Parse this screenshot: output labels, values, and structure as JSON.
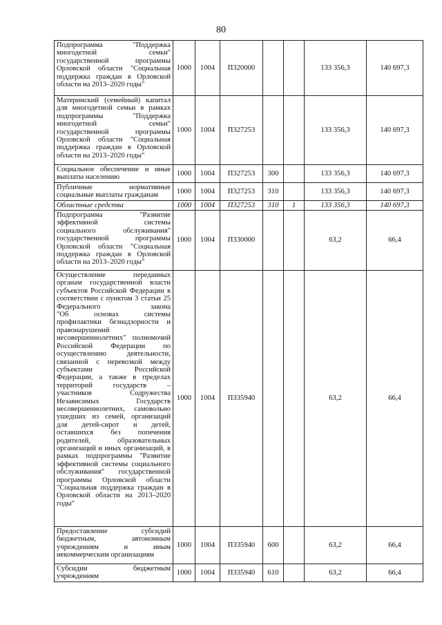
{
  "page_number": "80",
  "rows": [
    {
      "desc": [
        "Подпрограмма \"Поддержка",
        "многодетной семьи\"",
        "государственной программы",
        "Орловской области \"Социальная",
        "поддержка граждан в Орловской",
        "области на 2013–2020 годы\""
      ],
      "rz": "1000",
      "pr": "1004",
      "csr": "П320000",
      "vr": "",
      "src": "",
      "sum1": "133 356,3",
      "sum2": "140 697,3",
      "italic": false,
      "h": 80
    },
    {
      "desc": [
        "Материнский (семейный) капитал",
        "для многодетной семьи в рамках",
        "подпрограммы \"Поддержка",
        "многодетной семьи\"",
        "государственной программы",
        "Орловской области \"Социальная",
        "поддержка граждан в Орловской",
        "области на 2013–2020 годы\""
      ],
      "rz": "1000",
      "pr": "1004",
      "csr": "П327253",
      "vr": "",
      "src": "",
      "sum1": "133 356,3",
      "sum2": "140 697,3",
      "italic": false,
      "h": 100
    },
    {
      "desc": [
        "Социальное обеспечение и иные",
        "выплаты населению"
      ],
      "rz": "1000",
      "pr": "1004",
      "csr": "П327253",
      "vr": "300",
      "src": "",
      "sum1": "133 356,3",
      "sum2": "140 697,3",
      "italic": false,
      "h": 24
    },
    {
      "desc": [
        "Публичные нормативные",
        "социальные выплаты гражданам"
      ],
      "rz": "1000",
      "pr": "1004",
      "csr": "П327253",
      "vr": "310",
      "src": "",
      "sum1": "133 356,3",
      "sum2": "140 697,3",
      "italic": false,
      "h": 24
    },
    {
      "desc": [
        "Областные средства"
      ],
      "rz": "1000",
      "pr": "1004",
      "csr": "П327253",
      "vr": "310",
      "src": "1",
      "sum1": "133 356,3",
      "sum2": "140 697,3",
      "italic": true,
      "h": 14
    },
    {
      "desc": [
        "Подпрограмма \"Развитие",
        "эффективной системы",
        "социального обслуживания\"",
        "государственной программы",
        "Орловской области \"Социальная",
        "поддержка граждан в Орловской",
        "области на 2013–2020 годы\""
      ],
      "rz": "1000",
      "pr": "1004",
      "csr": "П330000",
      "vr": "",
      "src": "",
      "sum1": "63,2",
      "sum2": "66,4",
      "italic": false,
      "h": 87
    },
    {
      "desc": [
        "Осуществление переданных",
        "органам государственной власти",
        "субъектов Российской Федерации в",
        "соответствии с пунктом 3 статьи 25",
        "Федерального закона",
        "\"Об основах системы",
        "профилактики безнадзорности и",
        "правонарушений",
        "несовершеннолетних\" полномочий",
        "Российской Федерации по",
        "осуществлению деятельности,",
        "связанной с перевозкой между",
        "субъектами Российской",
        "Федерации, а также в пределах",
        "территорий государств –",
        "участников Содружества",
        "Независимых Государств",
        "несовершеннолетних, самовольно",
        "ушедших из семей, организаций",
        "для детей-сирот и детей,",
        "оставшихся без попечения",
        "родителей, образовательных",
        "организаций и иных организаций, в",
        "рамках подпрограммы \"Развитие",
        "эффективной системы социального",
        "обслуживания\" государственной",
        "программы Орловской области",
        "\"Социальная поддержка граждан в",
        "Орловской области на 2013–2020",
        "годы\""
      ],
      "rz": "1000",
      "pr": "1004",
      "csr": "П335940",
      "vr": "",
      "src": "",
      "sum1": "63,2",
      "sum2": "66,4",
      "italic": false,
      "h": 371
    },
    {
      "desc": [
        "Предоставление субсидий",
        "бюджетным, автономным",
        "учреждениям и иным",
        "некоммерческим организациям"
      ],
      "rz": "1000",
      "pr": "1004",
      "csr": "П335940",
      "vr": "600",
      "src": "",
      "sum1": "63,2",
      "sum2": "66,4",
      "italic": false,
      "h": 54
    },
    {
      "desc": [
        "Субсидии бюджетным",
        "учреждениям"
      ],
      "rz": "1000",
      "pr": "1004",
      "csr": "П335940",
      "vr": "610",
      "src": "",
      "sum1": "63,2",
      "sum2": "66,4",
      "italic": false,
      "h": 23
    }
  ]
}
